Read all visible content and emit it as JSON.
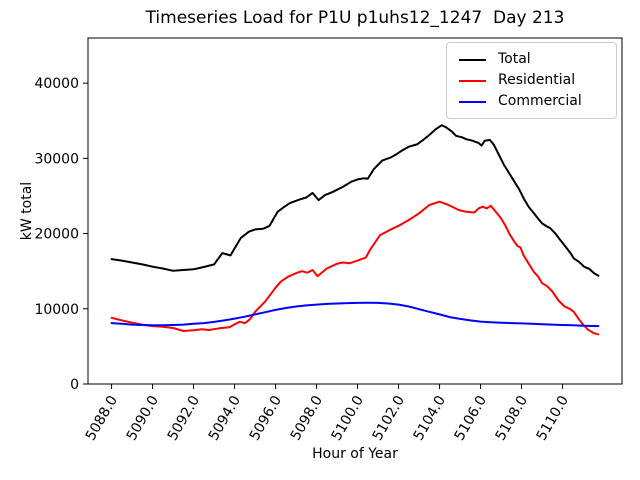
{
  "chart_data": {
    "type": "line",
    "title": "Timeseries Load for P1U p1uhs12_1247  Day 213",
    "xlabel": "Hour of Year",
    "ylabel": "kW total",
    "xlim": [
      5086.85,
      5112.9
    ],
    "ylim": [
      0,
      46000
    ],
    "grid": false,
    "legend_position": "upper right",
    "xticks": [
      5088,
      5090,
      5092,
      5094,
      5096,
      5098,
      5100,
      5102,
      5104,
      5106,
      5108,
      5110
    ],
    "xtick_labels": [
      "5088.0",
      "5090.0",
      "5092.0",
      "5094.0",
      "5096.0",
      "5098.0",
      "5100.0",
      "5102.0",
      "5104.0",
      "5106.0",
      "5108.0",
      "5110.0"
    ],
    "xtick_rotation_deg": 60,
    "yticks": [
      0,
      10000,
      20000,
      30000,
      40000
    ],
    "ytick_labels": [
      "0",
      "10000",
      "20000",
      "30000",
      "40000"
    ],
    "series": [
      {
        "name": "Total",
        "color": "#000000",
        "points": [
          [
            5088.0,
            16600
          ],
          [
            5088.5,
            16400
          ],
          [
            5089.0,
            16150
          ],
          [
            5089.5,
            15900
          ],
          [
            5090.0,
            15600
          ],
          [
            5090.5,
            15350
          ],
          [
            5091.0,
            15050
          ],
          [
            5091.5,
            15150
          ],
          [
            5092.0,
            15250
          ],
          [
            5092.5,
            15550
          ],
          [
            5093.0,
            15900
          ],
          [
            5093.4,
            17400
          ],
          [
            5093.8,
            17100
          ],
          [
            5094.3,
            19400
          ],
          [
            5094.7,
            20250
          ],
          [
            5095.0,
            20550
          ],
          [
            5095.4,
            20650
          ],
          [
            5095.7,
            21000
          ],
          [
            5096.1,
            22900
          ],
          [
            5096.4,
            23500
          ],
          [
            5096.7,
            24050
          ],
          [
            5097.2,
            24550
          ],
          [
            5097.5,
            24800
          ],
          [
            5097.8,
            25400
          ],
          [
            5098.1,
            24450
          ],
          [
            5098.4,
            25100
          ],
          [
            5098.8,
            25550
          ],
          [
            5099.3,
            26250
          ],
          [
            5099.7,
            26900
          ],
          [
            5100.0,
            27200
          ],
          [
            5100.3,
            27350
          ],
          [
            5100.5,
            27300
          ],
          [
            5100.8,
            28600
          ],
          [
            5101.2,
            29700
          ],
          [
            5101.6,
            30100
          ],
          [
            5101.9,
            30550
          ],
          [
            5102.2,
            31100
          ],
          [
            5102.5,
            31550
          ],
          [
            5102.9,
            31850
          ],
          [
            5103.2,
            32450
          ],
          [
            5103.5,
            33100
          ],
          [
            5103.8,
            33850
          ],
          [
            5104.1,
            34400
          ],
          [
            5104.3,
            34150
          ],
          [
            5104.6,
            33550
          ],
          [
            5104.8,
            33000
          ],
          [
            5105.1,
            32800
          ],
          [
            5105.3,
            32550
          ],
          [
            5105.6,
            32350
          ],
          [
            5105.9,
            32050
          ],
          [
            5106.05,
            31700
          ],
          [
            5106.2,
            32350
          ],
          [
            5106.45,
            32450
          ],
          [
            5106.65,
            31800
          ],
          [
            5106.9,
            30450
          ],
          [
            5107.15,
            29100
          ],
          [
            5107.4,
            28000
          ],
          [
            5107.65,
            26900
          ],
          [
            5107.9,
            25800
          ],
          [
            5108.1,
            24700
          ],
          [
            5108.35,
            23550
          ],
          [
            5108.6,
            22700
          ],
          [
            5108.8,
            22000
          ],
          [
            5109.0,
            21350
          ],
          [
            5109.2,
            21000
          ],
          [
            5109.4,
            20700
          ],
          [
            5109.65,
            20000
          ],
          [
            5109.9,
            19100
          ],
          [
            5110.15,
            18250
          ],
          [
            5110.4,
            17350
          ],
          [
            5110.55,
            16700
          ],
          [
            5110.8,
            16250
          ],
          [
            5111.05,
            15600
          ],
          [
            5111.3,
            15300
          ],
          [
            5111.55,
            14700
          ],
          [
            5111.75,
            14400
          ]
        ]
      },
      {
        "name": "Residential",
        "color": "#ff0000",
        "points": [
          [
            5088.0,
            8800
          ],
          [
            5088.5,
            8450
          ],
          [
            5089.0,
            8150
          ],
          [
            5089.5,
            7900
          ],
          [
            5090.0,
            7700
          ],
          [
            5090.5,
            7600
          ],
          [
            5091.0,
            7450
          ],
          [
            5091.5,
            7050
          ],
          [
            5092.0,
            7150
          ],
          [
            5092.4,
            7280
          ],
          [
            5092.75,
            7180
          ],
          [
            5093.25,
            7400
          ],
          [
            5093.75,
            7550
          ],
          [
            5094.0,
            7930
          ],
          [
            5094.25,
            8280
          ],
          [
            5094.5,
            8080
          ],
          [
            5094.75,
            8600
          ],
          [
            5095.0,
            9600
          ],
          [
            5095.5,
            11000
          ],
          [
            5096.0,
            12800
          ],
          [
            5096.25,
            13600
          ],
          [
            5096.6,
            14250
          ],
          [
            5097.0,
            14750
          ],
          [
            5097.3,
            15000
          ],
          [
            5097.55,
            14800
          ],
          [
            5097.8,
            15150
          ],
          [
            5098.05,
            14350
          ],
          [
            5098.5,
            15350
          ],
          [
            5099.0,
            16000
          ],
          [
            5099.3,
            16150
          ],
          [
            5099.6,
            16050
          ],
          [
            5100.0,
            16400
          ],
          [
            5100.4,
            16800
          ],
          [
            5100.6,
            17800
          ],
          [
            5101.1,
            19800
          ],
          [
            5101.55,
            20450
          ],
          [
            5102.05,
            21100
          ],
          [
            5102.5,
            21800
          ],
          [
            5103.0,
            22700
          ],
          [
            5103.5,
            23800
          ],
          [
            5104.0,
            24230
          ],
          [
            5104.45,
            23790
          ],
          [
            5104.95,
            23120
          ],
          [
            5105.3,
            22900
          ],
          [
            5105.7,
            22800
          ],
          [
            5105.9,
            23350
          ],
          [
            5106.1,
            23570
          ],
          [
            5106.3,
            23350
          ],
          [
            5106.5,
            23700
          ],
          [
            5106.8,
            22700
          ],
          [
            5107.0,
            22000
          ],
          [
            5107.2,
            21100
          ],
          [
            5107.4,
            20000
          ],
          [
            5107.65,
            18900
          ],
          [
            5107.8,
            18350
          ],
          [
            5107.95,
            18150
          ],
          [
            5108.1,
            17100
          ],
          [
            5108.35,
            16000
          ],
          [
            5108.6,
            14900
          ],
          [
            5108.8,
            14300
          ],
          [
            5109.0,
            13400
          ],
          [
            5109.25,
            13000
          ],
          [
            5109.5,
            12300
          ],
          [
            5109.8,
            11100
          ],
          [
            5110.1,
            10300
          ],
          [
            5110.35,
            10000
          ],
          [
            5110.55,
            9600
          ],
          [
            5110.8,
            8600
          ],
          [
            5111.0,
            7900
          ],
          [
            5111.25,
            7200
          ],
          [
            5111.5,
            6800
          ],
          [
            5111.75,
            6600
          ]
        ]
      },
      {
        "name": "Commercial",
        "color": "#0000ff",
        "points": [
          [
            5088.0,
            8100
          ],
          [
            5088.5,
            8000
          ],
          [
            5089.0,
            7900
          ],
          [
            5089.5,
            7850
          ],
          [
            5090.0,
            7800
          ],
          [
            5090.5,
            7800
          ],
          [
            5091.0,
            7850
          ],
          [
            5091.5,
            7900
          ],
          [
            5092.0,
            8000
          ],
          [
            5092.5,
            8100
          ],
          [
            5093.0,
            8250
          ],
          [
            5093.5,
            8450
          ],
          [
            5094.0,
            8700
          ],
          [
            5094.5,
            8950
          ],
          [
            5095.0,
            9250
          ],
          [
            5095.5,
            9550
          ],
          [
            5096.0,
            9850
          ],
          [
            5096.5,
            10100
          ],
          [
            5097.0,
            10300
          ],
          [
            5097.5,
            10450
          ],
          [
            5098.0,
            10550
          ],
          [
            5098.5,
            10650
          ],
          [
            5099.0,
            10700
          ],
          [
            5099.5,
            10750
          ],
          [
            5100.0,
            10780
          ],
          [
            5100.5,
            10800
          ],
          [
            5101.0,
            10780
          ],
          [
            5101.5,
            10700
          ],
          [
            5102.0,
            10550
          ],
          [
            5102.5,
            10300
          ],
          [
            5103.0,
            9950
          ],
          [
            5103.5,
            9600
          ],
          [
            5104.0,
            9250
          ],
          [
            5104.5,
            8900
          ],
          [
            5105.0,
            8650
          ],
          [
            5105.5,
            8450
          ],
          [
            5106.0,
            8300
          ],
          [
            5106.5,
            8200
          ],
          [
            5107.0,
            8150
          ],
          [
            5107.5,
            8100
          ],
          [
            5108.0,
            8050
          ],
          [
            5108.5,
            8000
          ],
          [
            5109.0,
            7950
          ],
          [
            5109.5,
            7900
          ],
          [
            5110.0,
            7850
          ],
          [
            5110.5,
            7800
          ],
          [
            5111.0,
            7750
          ],
          [
            5111.75,
            7700
          ]
        ]
      }
    ]
  }
}
